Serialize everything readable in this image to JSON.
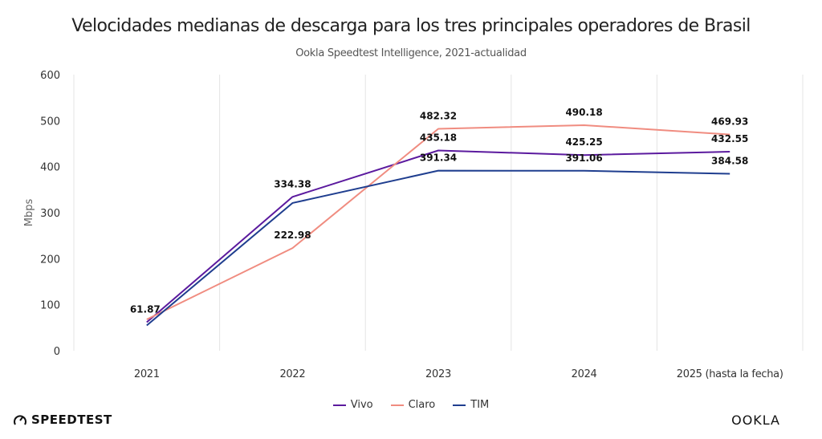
{
  "chart_data": {
    "type": "line",
    "title": "Velocidades medianas de descarga para los tres principales operadores de Brasil",
    "subtitle": "Ookla Speedtest Intelligence, 2021-actualidad",
    "xlabel": "",
    "ylabel": "Mbps",
    "ylim": [
      0,
      600
    ],
    "yticks": [
      0,
      100,
      200,
      300,
      400,
      500,
      600
    ],
    "categories": [
      "2021",
      "2022",
      "2023",
      "2024",
      "2025 (hasta la fecha)"
    ],
    "grid": "vertical",
    "legend_position": "bottom-center",
    "series": [
      {
        "name": "Vivo",
        "color": "#5b1a9e",
        "values": [
          61.87,
          334.38,
          435.18,
          425.25,
          432.55
        ],
        "labels": [
          "61.87",
          "334.38",
          "435.18",
          "425.25",
          "432.55"
        ]
      },
      {
        "name": "Claro",
        "color": "#f08c80",
        "values": [
          68,
          222.98,
          482.32,
          490.18,
          469.93
        ],
        "labels": [
          null,
          "222.98",
          "482.32",
          "490.18",
          "469.93"
        ]
      },
      {
        "name": "TIM",
        "color": "#1f3e8f",
        "values": [
          55,
          321,
          391.34,
          391.06,
          384.58
        ],
        "labels": [
          null,
          null,
          "391.34",
          "391.06",
          "384.58"
        ]
      }
    ]
  },
  "branding": {
    "left_logo": "SPEEDTEST",
    "left_icon": "speedometer-icon",
    "right_logo": "OOKLA"
  }
}
